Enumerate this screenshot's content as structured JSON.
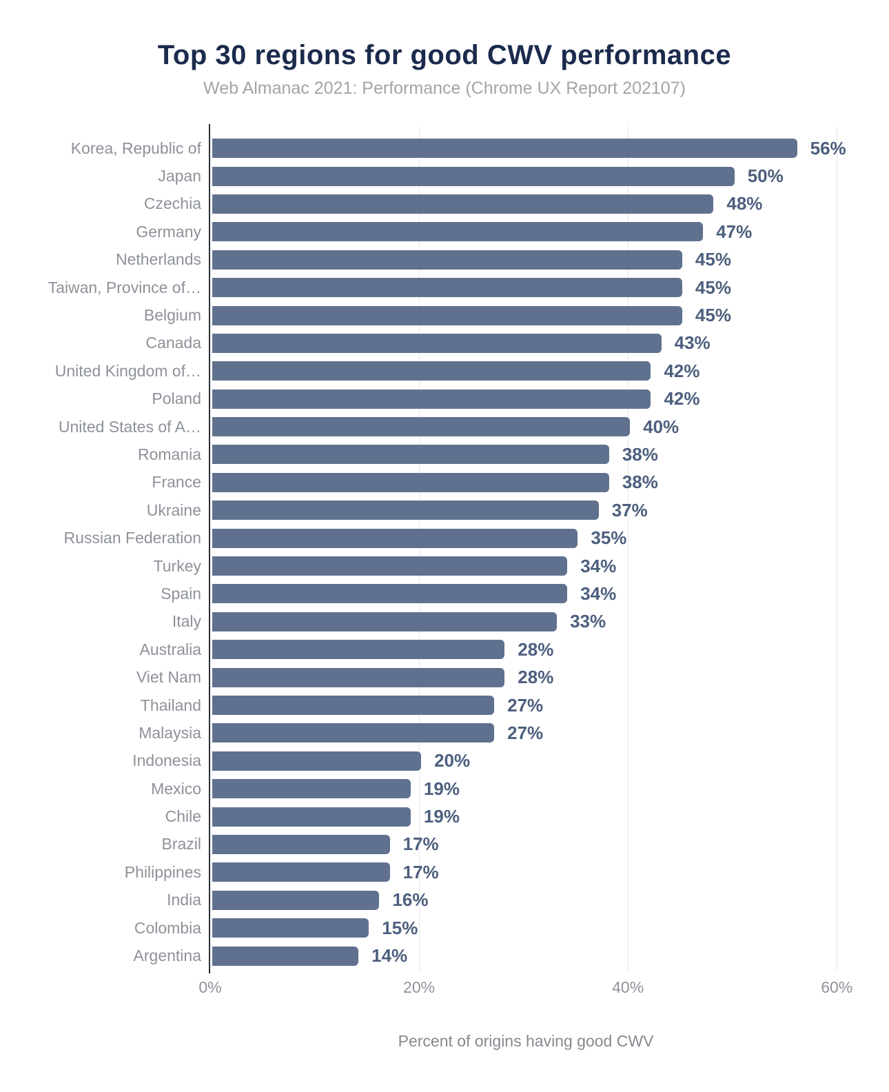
{
  "header": {
    "title": "Top 30 regions for good CWV performance",
    "subtitle": "Web Almanac 2021: Performance (Chrome UX Report 202107)"
  },
  "colors": {
    "bar": "#60718f",
    "value_label": "#4d5f7e",
    "title": "#1b2b4d",
    "subtitle": "#a4a4a4",
    "category_label": "#8d9199",
    "gridline": "#e7e7e7",
    "axis_line": "#2b2f36"
  },
  "chart_data": {
    "type": "bar",
    "orientation": "horizontal",
    "title": "Top 30 regions for good CWV performance",
    "subtitle": "Web Almanac 2021: Performance (Chrome UX Report 202107)",
    "xlabel": "Percent of origins having good CWV",
    "ylabel": "",
    "categories": [
      "Korea, Republic of",
      "Japan",
      "Czechia",
      "Germany",
      "Netherlands",
      "Taiwan, Province of…",
      "Belgium",
      "Canada",
      "United Kingdom of…",
      "Poland",
      "United States of A…",
      "Romania",
      "France",
      "Ukraine",
      "Russian Federation",
      "Turkey",
      "Spain",
      "Italy",
      "Australia",
      "Viet Nam",
      "Thailand",
      "Malaysia",
      "Indonesia",
      "Mexico",
      "Chile",
      "Brazil",
      "Philippines",
      "India",
      "Colombia",
      "Argentina"
    ],
    "values": [
      56,
      50,
      48,
      47,
      45,
      45,
      45,
      43,
      42,
      42,
      40,
      38,
      38,
      37,
      35,
      34,
      34,
      33,
      28,
      28,
      27,
      27,
      20,
      19,
      19,
      17,
      17,
      16,
      15,
      14
    ],
    "value_suffix": "%",
    "x_ticks": [
      "0%",
      "20%",
      "40%",
      "60%"
    ],
    "x_tick_values": [
      0,
      20,
      40,
      60
    ],
    "xlim": [
      0,
      65
    ],
    "grid": "vertical",
    "legend": "none",
    "bar_color": "#60718f",
    "value_label_color": "#4d5f7e"
  }
}
